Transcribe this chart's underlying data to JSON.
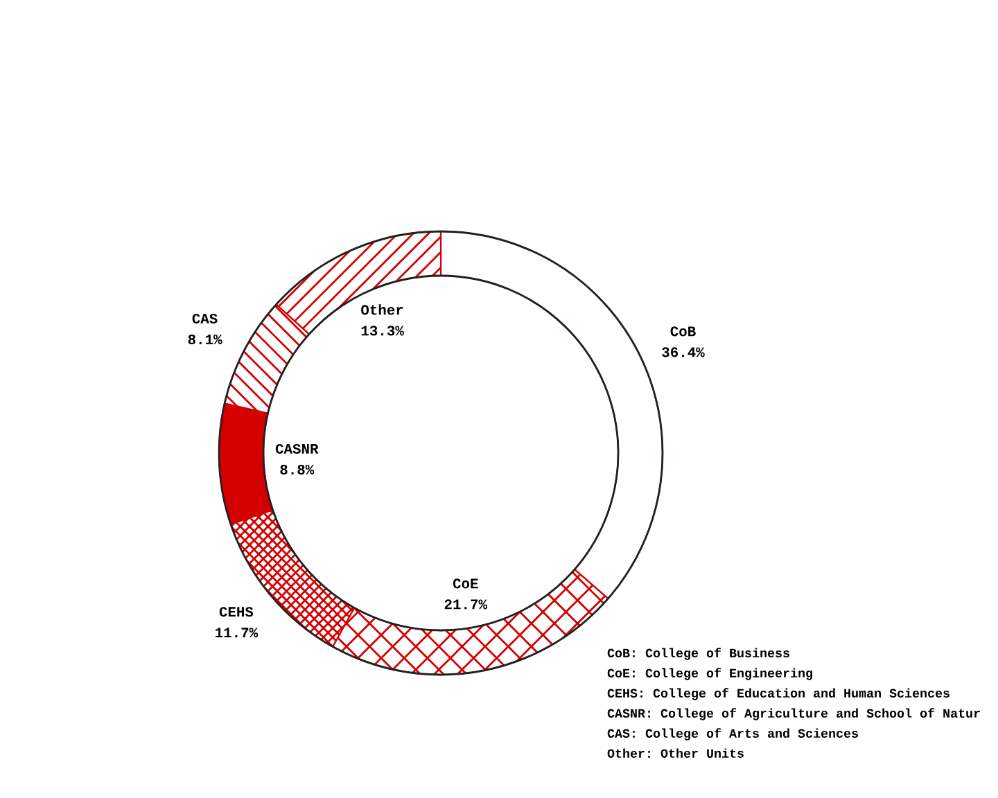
{
  "chart_data": {
    "type": "donut",
    "categories": [
      "CoB",
      "CoE",
      "CEHS",
      "CASNR",
      "CAS",
      "Other"
    ],
    "values": [
      36.4,
      21.7,
      11.7,
      8.8,
      8.1,
      13.3
    ],
    "colors": [
      "#ffffff",
      "#d40000",
      "#d40000",
      "#d40000",
      "#d40000",
      "#d40000"
    ],
    "value_labels": [
      "36.4%",
      "21.7%",
      "11.7%",
      "8.8%",
      "8.1%",
      "13.3%"
    ],
    "annotations": [
      "CoB: College of Business",
      "CoE: College of Engineering",
      "CEHS: College of Education and Human Sciences",
      "CASNR: College of Agriculture and School of Natur",
      "CAS: College of Arts and Sciences",
      "Other: Other Units"
    ]
  }
}
